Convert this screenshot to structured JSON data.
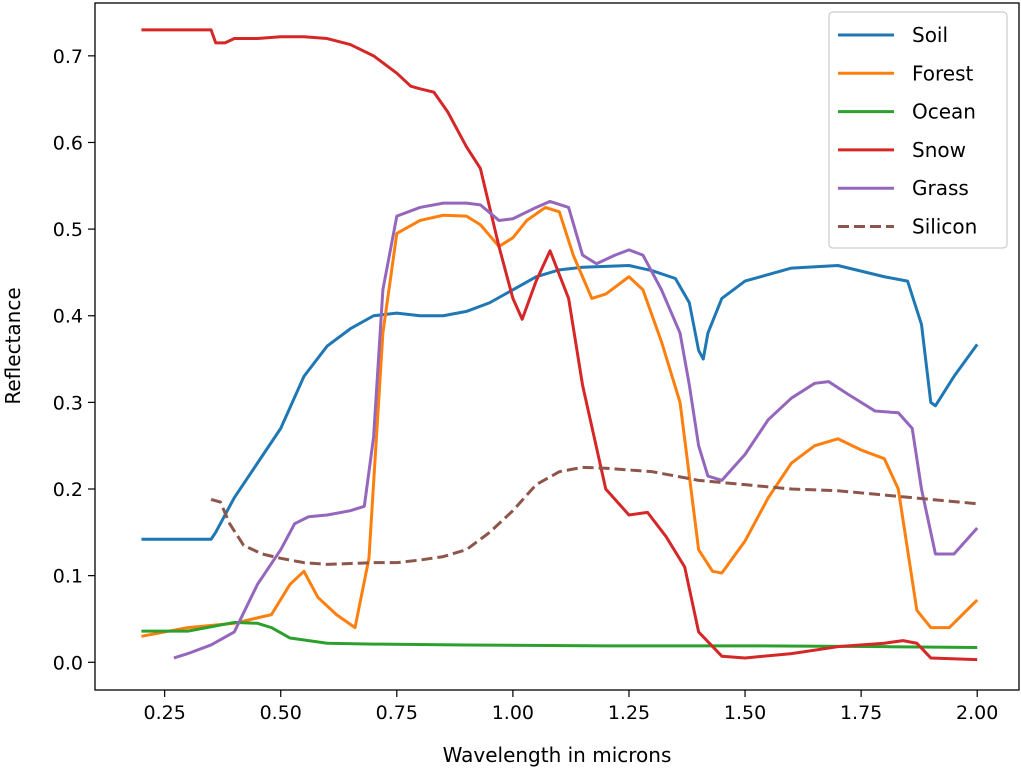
{
  "chart_data": {
    "type": "line",
    "title": "",
    "xlabel": "Wavelength in microns",
    "ylabel": "Reflectance",
    "xlim": [
      0.1,
      2.09
    ],
    "ylim": [
      -0.032,
      0.761
    ],
    "xticks": [
      0.25,
      0.5,
      0.75,
      1.0,
      1.25,
      1.5,
      1.75,
      2.0
    ],
    "xtick_labels": [
      "0.25",
      "0.50",
      "0.75",
      "1.00",
      "1.25",
      "1.50",
      "1.75",
      "2.00"
    ],
    "yticks": [
      0.0,
      0.1,
      0.2,
      0.3,
      0.4,
      0.5,
      0.6,
      0.7
    ],
    "ytick_labels": [
      "0.0",
      "0.1",
      "0.2",
      "0.3",
      "0.4",
      "0.5",
      "0.6",
      "0.7"
    ],
    "grid": false,
    "legend_position": "top-right",
    "series": [
      {
        "name": "Soil",
        "color": "#1f77b4",
        "dashed": false,
        "x": [
          0.2,
          0.35,
          0.36,
          0.4,
          0.45,
          0.5,
          0.55,
          0.6,
          0.65,
          0.7,
          0.75,
          0.8,
          0.85,
          0.9,
          0.95,
          1.0,
          1.05,
          1.1,
          1.15,
          1.2,
          1.25,
          1.3,
          1.35,
          1.38,
          1.4,
          1.41,
          1.42,
          1.45,
          1.5,
          1.6,
          1.7,
          1.8,
          1.85,
          1.88,
          1.9,
          1.91,
          1.95,
          2.0
        ],
        "y": [
          0.142,
          0.142,
          0.15,
          0.19,
          0.23,
          0.27,
          0.33,
          0.365,
          0.385,
          0.4,
          0.403,
          0.4,
          0.4,
          0.405,
          0.415,
          0.43,
          0.445,
          0.453,
          0.456,
          0.457,
          0.458,
          0.452,
          0.443,
          0.415,
          0.36,
          0.35,
          0.38,
          0.42,
          0.44,
          0.455,
          0.458,
          0.445,
          0.44,
          0.39,
          0.3,
          0.296,
          0.33,
          0.367
        ]
      },
      {
        "name": "Forest",
        "color": "#ff7f0e",
        "dashed": false,
        "x": [
          0.2,
          0.3,
          0.4,
          0.48,
          0.52,
          0.55,
          0.58,
          0.62,
          0.66,
          0.69,
          0.72,
          0.75,
          0.8,
          0.85,
          0.9,
          0.93,
          0.97,
          1.0,
          1.03,
          1.07,
          1.1,
          1.13,
          1.17,
          1.2,
          1.25,
          1.28,
          1.32,
          1.36,
          1.4,
          1.43,
          1.45,
          1.5,
          1.55,
          1.6,
          1.65,
          1.7,
          1.75,
          1.8,
          1.83,
          1.87,
          1.9,
          1.94,
          2.0
        ],
        "y": [
          0.03,
          0.04,
          0.045,
          0.055,
          0.09,
          0.105,
          0.075,
          0.055,
          0.04,
          0.12,
          0.38,
          0.495,
          0.51,
          0.516,
          0.515,
          0.505,
          0.48,
          0.49,
          0.51,
          0.525,
          0.52,
          0.47,
          0.42,
          0.425,
          0.445,
          0.43,
          0.37,
          0.3,
          0.13,
          0.105,
          0.103,
          0.14,
          0.19,
          0.23,
          0.25,
          0.258,
          0.245,
          0.235,
          0.2,
          0.06,
          0.04,
          0.04,
          0.072
        ]
      },
      {
        "name": "Ocean",
        "color": "#2ca02c",
        "dashed": false,
        "x": [
          0.2,
          0.3,
          0.4,
          0.45,
          0.48,
          0.52,
          0.6,
          0.7,
          0.9,
          1.2,
          1.5,
          1.8,
          2.0
        ],
        "y": [
          0.036,
          0.036,
          0.046,
          0.045,
          0.04,
          0.028,
          0.022,
          0.021,
          0.02,
          0.019,
          0.019,
          0.018,
          0.017
        ]
      },
      {
        "name": "Snow",
        "color": "#d62728",
        "dashed": false,
        "x": [
          0.2,
          0.35,
          0.36,
          0.38,
          0.4,
          0.45,
          0.5,
          0.55,
          0.6,
          0.65,
          0.7,
          0.75,
          0.78,
          0.8,
          0.83,
          0.86,
          0.9,
          0.93,
          0.97,
          1.0,
          1.02,
          1.05,
          1.08,
          1.12,
          1.15,
          1.2,
          1.25,
          1.29,
          1.33,
          1.37,
          1.4,
          1.45,
          1.5,
          1.6,
          1.7,
          1.8,
          1.84,
          1.87,
          1.9,
          2.0
        ],
        "y": [
          0.73,
          0.73,
          0.715,
          0.715,
          0.72,
          0.72,
          0.722,
          0.722,
          0.72,
          0.713,
          0.7,
          0.68,
          0.665,
          0.662,
          0.658,
          0.635,
          0.595,
          0.57,
          0.48,
          0.42,
          0.396,
          0.44,
          0.475,
          0.42,
          0.32,
          0.2,
          0.17,
          0.173,
          0.145,
          0.11,
          0.035,
          0.007,
          0.005,
          0.01,
          0.018,
          0.022,
          0.025,
          0.022,
          0.005,
          0.003
        ]
      },
      {
        "name": "Grass",
        "color": "#9467bd",
        "dashed": false,
        "x": [
          0.27,
          0.3,
          0.35,
          0.4,
          0.45,
          0.5,
          0.53,
          0.56,
          0.6,
          0.65,
          0.68,
          0.7,
          0.72,
          0.75,
          0.8,
          0.85,
          0.9,
          0.93,
          0.97,
          1.0,
          1.05,
          1.08,
          1.12,
          1.15,
          1.18,
          1.22,
          1.25,
          1.28,
          1.32,
          1.36,
          1.38,
          1.4,
          1.42,
          1.45,
          1.5,
          1.55,
          1.6,
          1.65,
          1.68,
          1.72,
          1.75,
          1.78,
          1.83,
          1.86,
          1.88,
          1.91,
          1.95,
          2.0
        ],
        "y": [
          0.005,
          0.01,
          0.02,
          0.035,
          0.09,
          0.13,
          0.16,
          0.168,
          0.17,
          0.175,
          0.18,
          0.26,
          0.43,
          0.515,
          0.525,
          0.53,
          0.53,
          0.528,
          0.51,
          0.512,
          0.525,
          0.532,
          0.525,
          0.47,
          0.46,
          0.47,
          0.476,
          0.47,
          0.43,
          0.38,
          0.32,
          0.25,
          0.215,
          0.21,
          0.24,
          0.28,
          0.305,
          0.322,
          0.324,
          0.31,
          0.3,
          0.29,
          0.288,
          0.27,
          0.2,
          0.125,
          0.125,
          0.155
        ]
      },
      {
        "name": "Silicon",
        "color": "#8c564b",
        "dashed": true,
        "x": [
          0.35,
          0.37,
          0.39,
          0.42,
          0.46,
          0.5,
          0.55,
          0.6,
          0.65,
          0.7,
          0.75,
          0.8,
          0.85,
          0.9,
          0.95,
          1.0,
          1.05,
          1.1,
          1.15,
          1.2,
          1.3,
          1.4,
          1.5,
          1.6,
          1.7,
          1.8,
          1.9,
          2.0
        ],
        "y": [
          0.188,
          0.185,
          0.16,
          0.135,
          0.125,
          0.12,
          0.115,
          0.113,
          0.114,
          0.115,
          0.115,
          0.118,
          0.122,
          0.13,
          0.15,
          0.175,
          0.205,
          0.22,
          0.225,
          0.224,
          0.22,
          0.21,
          0.205,
          0.2,
          0.198,
          0.193,
          0.188,
          0.183
        ]
      }
    ]
  }
}
